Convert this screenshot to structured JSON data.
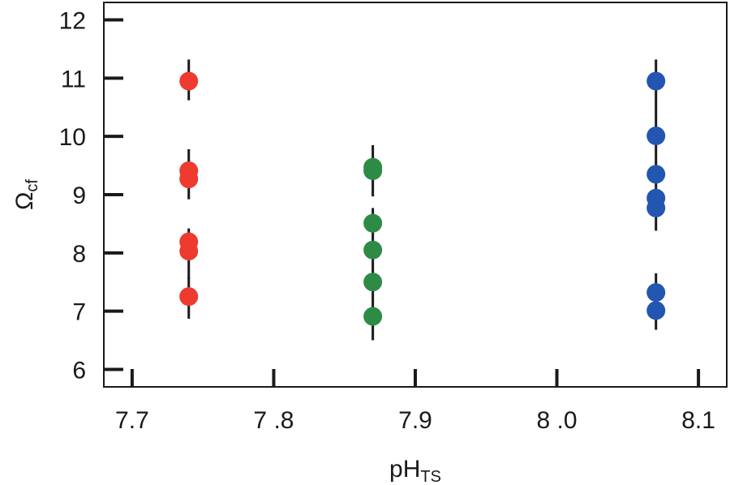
{
  "chart_data": {
    "type": "scatter",
    "title": "",
    "xlabel": {
      "main": "pH",
      "sub": "TS"
    },
    "ylabel": {
      "main": "Ω",
      "sub": "cf"
    },
    "xlim": [
      7.68,
      8.12
    ],
    "ylim": [
      5.7,
      12.3
    ],
    "xticks": [
      {
        "value": 7.7,
        "label": "7.7"
      },
      {
        "value": 7.8,
        "label": "7 .8"
      },
      {
        "value": 7.9,
        "label": "7.9"
      },
      {
        "value": 8.0,
        "label": "8 .0"
      },
      {
        "value": 8.1,
        "label": "8.1"
      }
    ],
    "yticks": [
      {
        "value": 6,
        "label": "6"
      },
      {
        "value": 7,
        "label": "7"
      },
      {
        "value": 8,
        "label": "8"
      },
      {
        "value": 9,
        "label": "9"
      },
      {
        "value": 10,
        "label": "10"
      },
      {
        "value": 11,
        "label": "11"
      },
      {
        "value": 12,
        "label": "12"
      }
    ],
    "grid": false,
    "legend": "none",
    "series": [
      {
        "color": "#ee3a2f",
        "x": 7.74,
        "y": [
          10.95,
          9.41,
          9.27,
          8.19,
          8.03,
          7.25
        ],
        "error_segments": [
          [
            10.62,
            11.32
          ],
          [
            8.92,
            9.78
          ],
          [
            7.55,
            8.42
          ],
          [
            6.87,
            7.58
          ]
        ]
      },
      {
        "color": "#2e8b45",
        "x": 7.87,
        "y": [
          9.47,
          9.41,
          8.51,
          8.05,
          7.5,
          6.91
        ],
        "error_segments": [
          [
            8.97,
            9.85
          ],
          [
            6.5,
            8.77
          ]
        ]
      },
      {
        "color": "#2356b0",
        "x": 8.07,
        "y": [
          10.95,
          10.01,
          9.35,
          8.94,
          8.77,
          7.32,
          7.01
        ],
        "error_segments": [
          [
            8.38,
            11.32
          ],
          [
            6.68,
            7.65
          ]
        ]
      }
    ]
  }
}
